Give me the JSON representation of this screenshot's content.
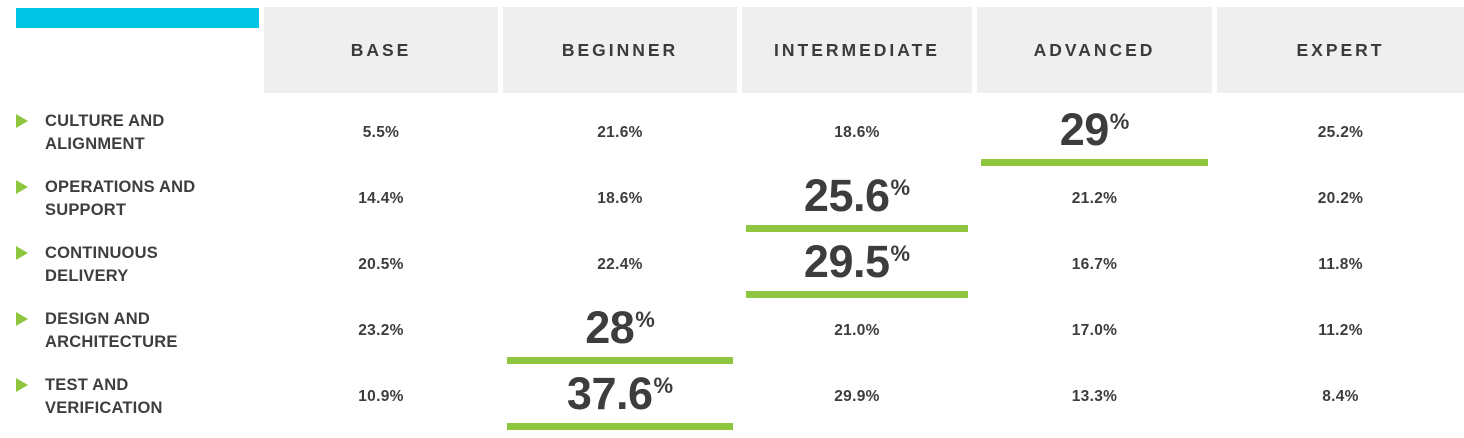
{
  "palette": {
    "accent_green": "#8ec63f",
    "accent_cyan": "#00c4e4",
    "header_bg": "#efeff0",
    "text": "#3e3e40"
  },
  "header": {
    "columns": [
      "BASE",
      "BEGINNER",
      "INTERMEDIATE",
      "ADVANCED",
      "EXPERT"
    ]
  },
  "table": {
    "rows": [
      {
        "label_lines": [
          "CULTURE AND",
          "ALIGNMENT"
        ],
        "values": [
          "5.5%",
          "21.6%",
          "18.6%",
          "29%",
          "25.2%"
        ],
        "highlight_index": 3
      },
      {
        "label_lines": [
          "OPERATIONS AND",
          "SUPPORT"
        ],
        "values": [
          "14.4%",
          "18.6%",
          "25.6%",
          "21.2%",
          "20.2%"
        ],
        "highlight_index": 2
      },
      {
        "label_lines": [
          "CONTINUOUS",
          "DELIVERY"
        ],
        "values": [
          "20.5%",
          "22.4%",
          "29.5%",
          "16.7%",
          "11.8%"
        ],
        "highlight_index": 2
      },
      {
        "label_lines": [
          "DESIGN AND",
          "ARCHITECTURE"
        ],
        "values": [
          "23.2%",
          "28%",
          "21.0%",
          "17.0%",
          "11.2%"
        ],
        "highlight_index": 1
      },
      {
        "label_lines": [
          "TEST AND",
          "VERIFICATION"
        ],
        "values": [
          "10.9%",
          "37.6%",
          "29.9%",
          "13.3%",
          "8.4%"
        ],
        "highlight_index": 1
      }
    ]
  },
  "chart_data": {
    "type": "table",
    "title": "",
    "columns": [
      "Base",
      "Beginner",
      "Intermediate",
      "Advanced",
      "Expert"
    ],
    "row_labels": [
      "Culture and Alignment",
      "Operations and Support",
      "Continuous Delivery",
      "Design and Architecture",
      "Test and Verification"
    ],
    "values_percent": [
      [
        5.5,
        21.6,
        18.6,
        29.0,
        25.2
      ],
      [
        14.4,
        18.6,
        25.6,
        21.2,
        20.2
      ],
      [
        20.5,
        22.4,
        29.5,
        16.7,
        11.8
      ],
      [
        23.2,
        28.0,
        21.0,
        17.0,
        11.2
      ],
      [
        10.9,
        37.6,
        29.9,
        13.3,
        8.4
      ]
    ],
    "highlighted_cell_per_row": [
      {
        "row": "Culture and Alignment",
        "column": "Advanced",
        "value": 29.0
      },
      {
        "row": "Operations and Support",
        "column": "Intermediate",
        "value": 25.6
      },
      {
        "row": "Continuous Delivery",
        "column": "Intermediate",
        "value": 29.5
      },
      {
        "row": "Design and Architecture",
        "column": "Beginner",
        "value": 28.0
      },
      {
        "row": "Test and Verification",
        "column": "Beginner",
        "value": 37.6
      }
    ],
    "legend_position": "none",
    "grid": false
  }
}
